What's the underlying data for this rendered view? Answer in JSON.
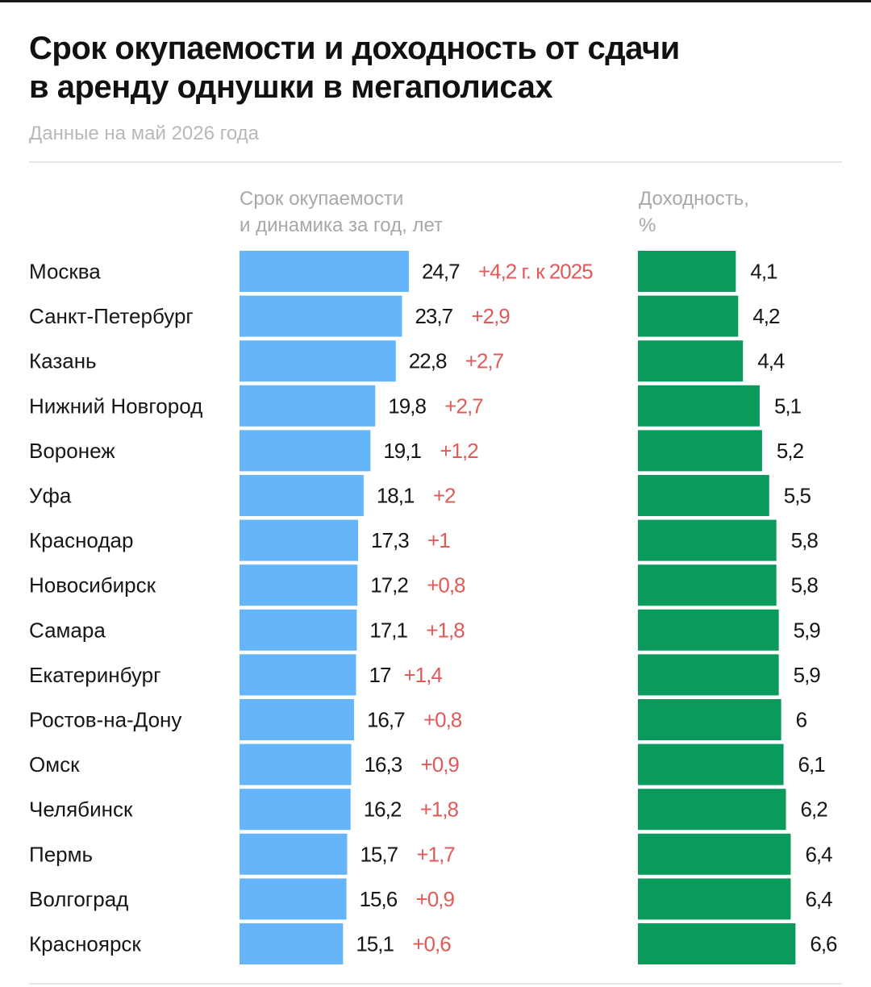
{
  "title_line1": "Срок окупаемости и доходность от сдачи",
  "title_line2": "в аренду однушки в мегаполисах",
  "subtitle": "Данные на май 2026 года",
  "col_payback": {
    "line1": "Срок окупаемости",
    "line2": "и динамика за год, лет"
  },
  "col_yield": {
    "line1": "Доходность,",
    "line2": "%"
  },
  "colors": {
    "payback_bar": "#64b5fa",
    "yield_bar": "#0a9a5c",
    "change_text": "#e05a5a"
  },
  "chart_data": {
    "type": "bar",
    "orientation": "horizontal",
    "categories": [
      "Москва",
      "Санкт-Петербург",
      "Казань",
      "Нижний Новгород",
      "Воронеж",
      "Уфа",
      "Краснодар",
      "Новосибирск",
      "Самара",
      "Екатеринбург",
      "Ростов-на-Дону",
      "Омск",
      "Челябинск",
      "Пермь",
      "Волгоград",
      "Красноярск"
    ],
    "series": [
      {
        "name": "Срок окупаемости",
        "values": [
          24.7,
          23.7,
          22.8,
          19.8,
          19.1,
          18.1,
          17.3,
          17.2,
          17.1,
          17,
          16.7,
          16.3,
          16.2,
          15.7,
          15.6,
          15.1
        ],
        "labels": [
          "24,7",
          "23,7",
          "22,8",
          "19,8",
          "19,1",
          "18,1",
          "17,3",
          "17,2",
          "17,1",
          "17",
          "16,7",
          "16,3",
          "16,2",
          "15,7",
          "15,6",
          "15,1"
        ]
      },
      {
        "name": "Доходность",
        "values": [
          4.1,
          4.2,
          4.4,
          5.1,
          5.2,
          5.5,
          5.8,
          5.8,
          5.9,
          5.9,
          6,
          6.1,
          6.2,
          6.4,
          6.4,
          6.6
        ],
        "labels": [
          "4,1",
          "4,2",
          "4,4",
          "5,1",
          "5,2",
          "5,5",
          "5,8",
          "5,8",
          "5,9",
          "5,9",
          "6",
          "6,1",
          "6,2",
          "6,4",
          "6,4",
          "6,6"
        ]
      }
    ],
    "changes": [
      "+4,2 г. к 2025",
      "+2,9",
      "+2,7",
      "+2,7",
      "+1,2",
      "+2",
      "+1",
      "+0,8",
      "+1,8",
      "+1,4",
      "+0,8",
      "+0,9",
      "+1,8",
      "+1,7",
      "+0,9",
      "+0,6"
    ],
    "grid": false,
    "legend": "none"
  }
}
